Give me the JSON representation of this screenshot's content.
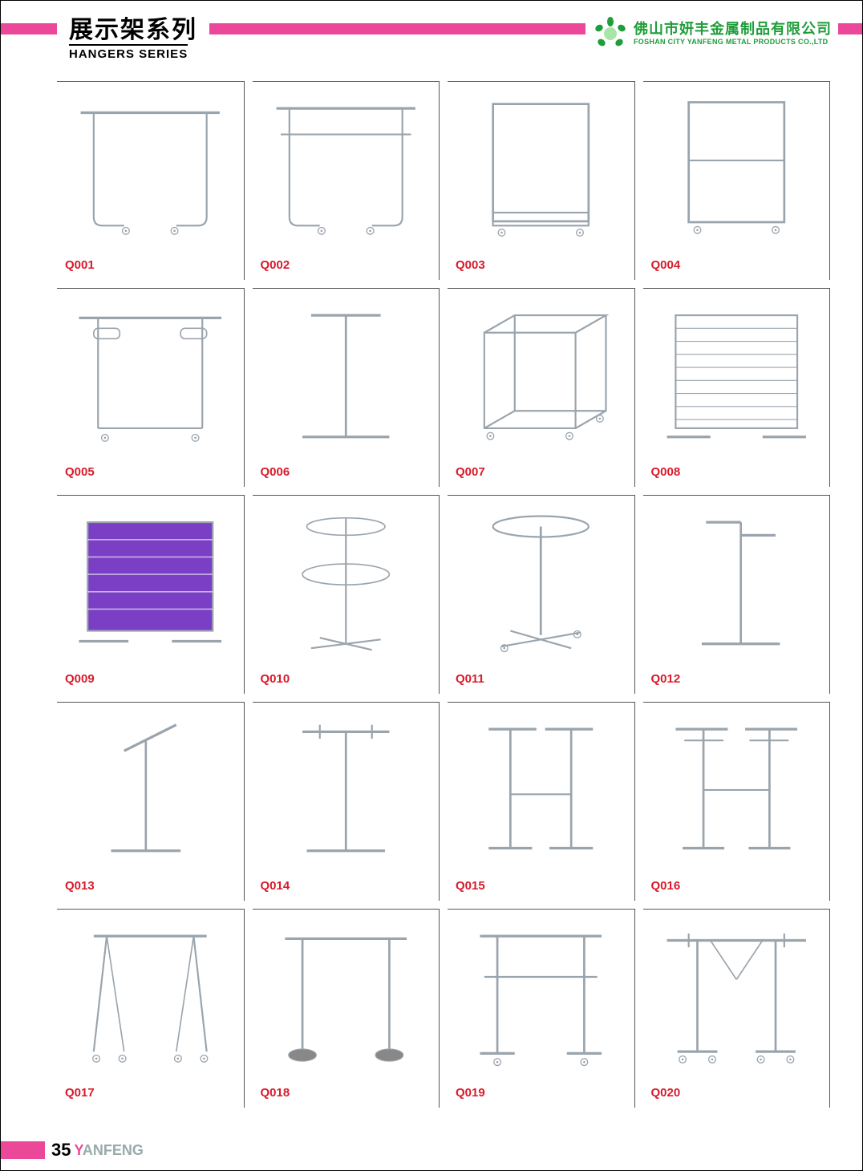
{
  "header": {
    "title_cn": "展示架系列",
    "title_en": "HANGERS SERIES",
    "company_cn": "佛山市妍丰金属制品有限公司",
    "company_en": "FOSHAN CITY YANFENG METAL PRODUCTS CO.,LTD",
    "accent_color": "#ec4899",
    "company_color": "#1f9d3a",
    "logo_colors": {
      "light": "#a8e6a8",
      "dark": "#1f9d3a"
    }
  },
  "grid": {
    "columns": 4,
    "rows": 5,
    "cell_border_color": "#555555",
    "code_color": "#d91a2a",
    "code_fontsize": 15,
    "stroke_color": "#9aa4ad",
    "products": [
      {
        "code": "Q001",
        "shape": "single-rail-wheels"
      },
      {
        "code": "Q002",
        "shape": "double-rail-wheels"
      },
      {
        "code": "Q003",
        "shape": "rect-frame-wheels"
      },
      {
        "code": "Q004",
        "shape": "rect-frame-mid-wheels"
      },
      {
        "code": "Q005",
        "shape": "double-bar-wheels"
      },
      {
        "code": "Q006",
        "shape": "t-stand"
      },
      {
        "code": "Q007",
        "shape": "cube-frame-wheels"
      },
      {
        "code": "Q008",
        "shape": "slat-rack"
      },
      {
        "code": "Q009",
        "shape": "panel-purple"
      },
      {
        "code": "Q010",
        "shape": "spinner-double"
      },
      {
        "code": "Q011",
        "shape": "round-top-stand"
      },
      {
        "code": "Q012",
        "shape": "two-arm-stand"
      },
      {
        "code": "Q013",
        "shape": "slant-arm-stand"
      },
      {
        "code": "Q014",
        "shape": "cross-arm-stand"
      },
      {
        "code": "Q015",
        "shape": "h-frame-double"
      },
      {
        "code": "Q016",
        "shape": "h-frame-four"
      },
      {
        "code": "Q017",
        "shape": "a-frame-wheels"
      },
      {
        "code": "Q018",
        "shape": "single-rail-weight"
      },
      {
        "code": "Q019",
        "shape": "double-rail-simple"
      },
      {
        "code": "Q020",
        "shape": "wide-rail-wheels"
      }
    ]
  },
  "footer": {
    "page_number": "35",
    "brand": "YANFENG",
    "accent_color": "#ec4899"
  },
  "colors": {
    "purple": "#7a3fc4",
    "metal": "#b8c2cc",
    "metal_dark": "#8a96a0"
  }
}
